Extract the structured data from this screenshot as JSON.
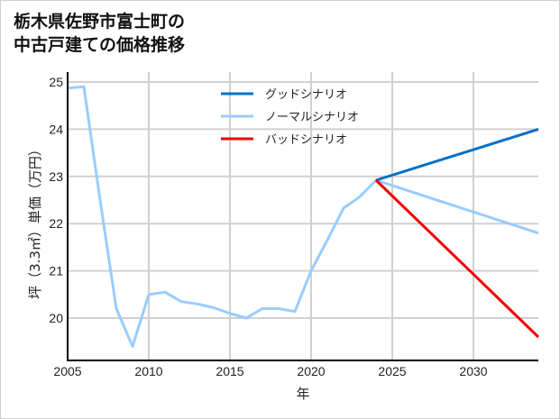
{
  "chart_data": {
    "type": "line",
    "title": "栃木県佐野市富士町の\n中古戸建ての価格推移",
    "title_lines": [
      "栃木県佐野市富士町の",
      "中古戸建ての価格推移"
    ],
    "xlabel": "年",
    "ylabel": "坪（3.3㎡）単価（万円）",
    "xlim": [
      2005,
      2034
    ],
    "ylim": [
      19.1,
      25.2
    ],
    "x_ticks": [
      "2005",
      "2010",
      "2015",
      "2020",
      "2025",
      "2030"
    ],
    "y_ticks": [
      "20",
      "21",
      "22",
      "23",
      "24",
      "25"
    ],
    "grid": true,
    "legend_position": "upper center",
    "series": [
      {
        "name": "グッドシナリオ",
        "color": "#0070c8",
        "x": [
          2024,
          2034
        ],
        "values": [
          22.92,
          24.0
        ]
      },
      {
        "name": "ノーマルシナリオ",
        "color": "#99ccff",
        "x": [
          2005,
          2006,
          2007,
          2008,
          2009,
          2010,
          2011,
          2012,
          2013,
          2014,
          2015,
          2016,
          2017,
          2018,
          2019,
          2020,
          2021,
          2022,
          2023,
          2024,
          2034
        ],
        "values": [
          24.87,
          24.9,
          22.5,
          20.2,
          19.4,
          20.5,
          20.55,
          20.35,
          20.3,
          20.22,
          20.1,
          20.0,
          20.2,
          20.2,
          20.14,
          21.0,
          21.65,
          22.33,
          22.57,
          22.92,
          21.8
        ]
      },
      {
        "name": "バッドシナリオ",
        "color": "#ee0000",
        "x": [
          2024,
          2034
        ],
        "values": [
          22.92,
          19.6
        ]
      }
    ]
  }
}
